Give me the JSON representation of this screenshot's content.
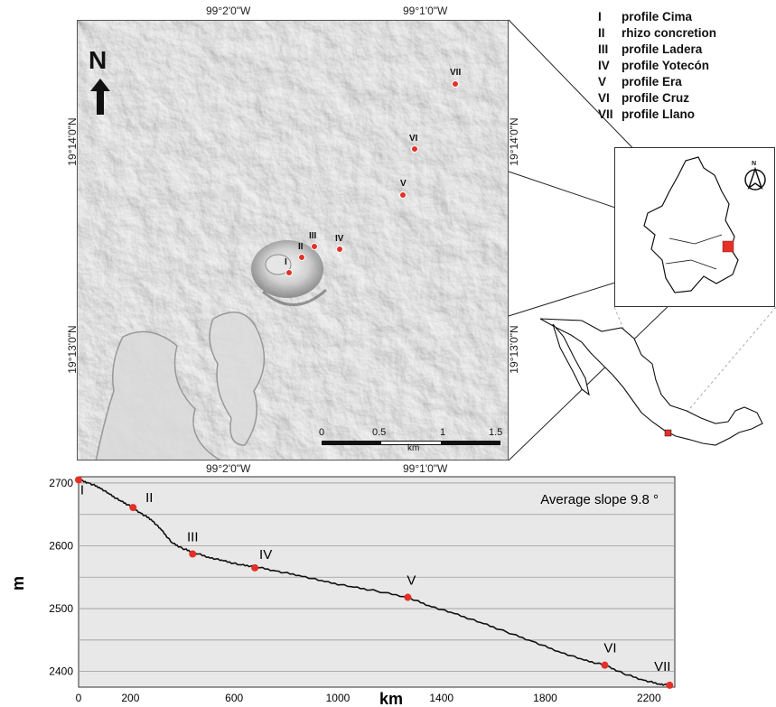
{
  "map": {
    "top_coords": [
      "99°2'0\"W",
      "99°1'0\"W"
    ],
    "bottom_coords": [
      "99°2'0\"W",
      "99°1'0\"W"
    ],
    "left_coords": [
      "19°14'0\"N",
      "19°13'0\"N"
    ],
    "right_coords": [
      "19°14'0\"N",
      "19°13'0\"N"
    ],
    "north_label": "N",
    "scale": {
      "ticks": [
        "0",
        "0.5",
        "1",
        "1.5"
      ],
      "unit": "km"
    },
    "points": [
      {
        "label": "I"
      },
      {
        "label": "II"
      },
      {
        "label": "III"
      },
      {
        "label": "IV"
      },
      {
        "label": "V"
      },
      {
        "label": "VI"
      },
      {
        "label": "VII"
      }
    ],
    "point_color": "#e23127"
  },
  "legend": [
    {
      "num": "I",
      "text": "profile  Cima"
    },
    {
      "num": "II",
      "text": "rhizo concretion"
    },
    {
      "num": "III",
      "text": "profile Ladera"
    },
    {
      "num": "IV",
      "text": "profile Yotecón"
    },
    {
      "num": "V",
      "text": "profile Era"
    },
    {
      "num": "VI",
      "text": "profile Cruz"
    },
    {
      "num": "VII",
      "text": "profile Llano"
    }
  ],
  "inset": {
    "north_label": "N"
  },
  "chart_data": {
    "type": "line",
    "annotation": "Average  slope 9.8 °",
    "xlabel": "km",
    "ylabel": "m",
    "x_ticks": [
      0,
      200,
      600,
      1000,
      1400,
      1800,
      2200
    ],
    "y_ticks": [
      2700,
      2600,
      2500,
      2400
    ],
    "xlim": [
      0,
      2300
    ],
    "ylim": [
      2375,
      2710
    ],
    "profile": [
      [
        0,
        2705
      ],
      [
        40,
        2700
      ],
      [
        80,
        2693
      ],
      [
        120,
        2682
      ],
      [
        160,
        2672
      ],
      [
        200,
        2663
      ],
      [
        240,
        2652
      ],
      [
        280,
        2642
      ],
      [
        320,
        2625
      ],
      [
        360,
        2605
      ],
      [
        400,
        2596
      ],
      [
        440,
        2590
      ],
      [
        500,
        2582
      ],
      [
        560,
        2576
      ],
      [
        620,
        2570
      ],
      [
        680,
        2567
      ],
      [
        760,
        2560
      ],
      [
        850,
        2553
      ],
      [
        950,
        2543
      ],
      [
        1050,
        2535
      ],
      [
        1150,
        2528
      ],
      [
        1270,
        2518
      ],
      [
        1350,
        2505
      ],
      [
        1450,
        2492
      ],
      [
        1550,
        2478
      ],
      [
        1650,
        2463
      ],
      [
        1750,
        2448
      ],
      [
        1850,
        2432
      ],
      [
        1950,
        2418
      ],
      [
        2030,
        2410
      ],
      [
        2100,
        2397
      ],
      [
        2180,
        2386
      ],
      [
        2240,
        2380
      ],
      [
        2280,
        2378
      ]
    ],
    "points": [
      {
        "label": "I",
        "x": 0,
        "y": 2705
      },
      {
        "label": "II",
        "x": 210,
        "y": 2661
      },
      {
        "label": "III",
        "x": 440,
        "y": 2587
      },
      {
        "label": "IV",
        "x": 680,
        "y": 2565
      },
      {
        "label": "V",
        "x": 1270,
        "y": 2518
      },
      {
        "label": "VI",
        "x": 2030,
        "y": 2410
      },
      {
        "label": "VII",
        "x": 2280,
        "y": 2378
      }
    ],
    "colors": {
      "background": "#e8e8e8",
      "line": "#111111",
      "grid": "#9a9a9a",
      "point": "#e23127"
    }
  }
}
